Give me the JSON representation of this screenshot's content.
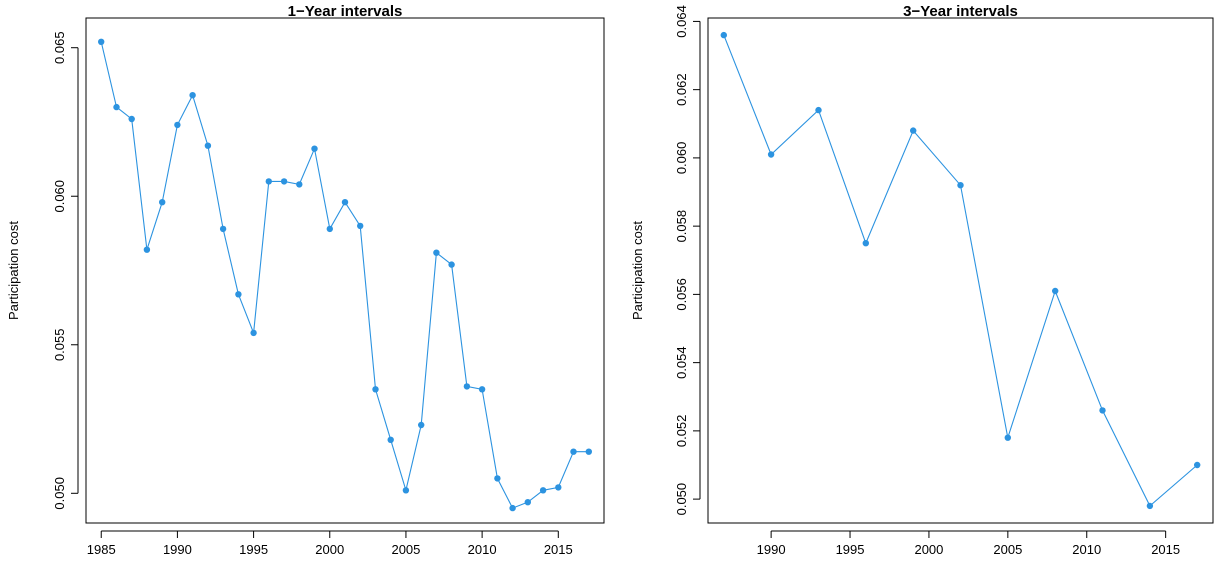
{
  "chart_data": [
    {
      "type": "line",
      "title": "1−Year intervals",
      "xlabel": "",
      "ylabel": "Participation cost",
      "xlim": [
        1984.0,
        2018.0
      ],
      "ylim": [
        0.049,
        0.066
      ],
      "xticks": [
        1985,
        1990,
        1995,
        2000,
        2005,
        2010,
        2015
      ],
      "yticks": [
        "0.050",
        "0.055",
        "0.060",
        "0.065"
      ],
      "grid": false,
      "color": "#2C93E0",
      "x": [
        1985,
        1986,
        1987,
        1988,
        1989,
        1990,
        1991,
        1992,
        1993,
        1994,
        1995,
        1996,
        1997,
        1998,
        1999,
        2000,
        2001,
        2002,
        2003,
        2004,
        2005,
        2006,
        2007,
        2008,
        2009,
        2010,
        2011,
        2012,
        2013,
        2014,
        2015,
        2016,
        2017
      ],
      "y": [
        0.0652,
        0.063,
        0.0626,
        0.0582,
        0.0598,
        0.0624,
        0.0634,
        0.0617,
        0.0589,
        0.0567,
        0.0554,
        0.0605,
        0.0605,
        0.0604,
        0.0616,
        0.0589,
        0.0598,
        0.059,
        0.0535,
        0.0518,
        0.0501,
        0.0523,
        0.0581,
        0.0577,
        0.0536,
        0.0535,
        0.0505,
        0.0495,
        0.0497,
        0.0501,
        0.0502,
        0.0514,
        0.0514
      ]
    },
    {
      "type": "line",
      "title": "3−Year intervals",
      "xlabel": "",
      "ylabel": "Participation cost",
      "xlim": [
        1986.0,
        2018.0
      ],
      "ylim": [
        0.0493,
        0.0641
      ],
      "xticks": [
        1990,
        1995,
        2000,
        2005,
        2010,
        2015
      ],
      "yticks": [
        "0.050",
        "0.052",
        "0.054",
        "0.056",
        "0.058",
        "0.060",
        "0.062",
        "0.064"
      ],
      "grid": false,
      "color": "#2C93E0",
      "x": [
        1987,
        1990,
        1993,
        1996,
        1999,
        2002,
        2005,
        2008,
        2011,
        2014,
        2017
      ],
      "y": [
        0.0636,
        0.0601,
        0.0614,
        0.0575,
        0.0608,
        0.0592,
        0.0518,
        0.0561,
        0.0526,
        0.0498,
        0.051
      ]
    }
  ]
}
